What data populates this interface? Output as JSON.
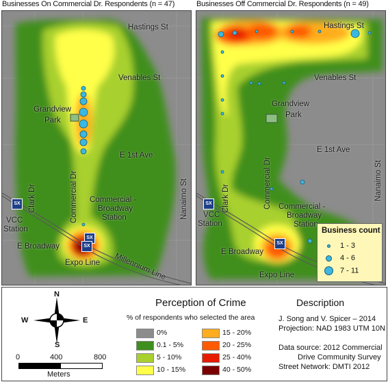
{
  "left_map": {
    "title": "Businesses On Commercial Dr. Respondents (n = 47)",
    "streets": {
      "hastings": "Hastings St",
      "venables": "Venables St",
      "grandview": "Grandview",
      "park": "Park",
      "e1st": "E 1st Ave",
      "clark": "Clark Dr",
      "commercial": "Commercial Dr",
      "nanaimo": "Nanaimo St",
      "cbroad1": "Commercial -",
      "cbroad2": "Broadway",
      "cbroad3": "Station",
      "vcc1": "VCC",
      "vcc2": "Station",
      "ebroadway": "E Broadway",
      "expo": "Expo Line",
      "millennium": "Millennium Line"
    }
  },
  "right_map": {
    "title": "Businesses Off Commercial Dr. Respondents (n = 49)",
    "streets": {
      "hastings": "Hastings St",
      "venables": "Venables St",
      "grandview": "Grandview",
      "park": "Park",
      "e1st": "E 1st Ave",
      "clark": "Clark Dr",
      "commercial": "Commercial Dr",
      "nanaimo": "Nanaimo St",
      "cbroad1": "Commercial -",
      "cbroad2": "Broadway",
      "cbroad3": "Station",
      "vcc1": "VCC",
      "vcc2": "Station",
      "ebroadway": "E Broadway",
      "expo": "Expo Line"
    },
    "business_count": {
      "title": "Business count",
      "items": [
        "1 - 3",
        "4 - 6",
        "7 - 11"
      ]
    }
  },
  "skytrain_icon_text": "SX",
  "legend": {
    "north": "N",
    "south": "S",
    "east": "E",
    "west": "W",
    "scale_ticks": [
      "0",
      "400",
      "800"
    ],
    "scale_unit": "Meters",
    "title": "Perception of Crime",
    "subtitle": "% of respondents who selected the area",
    "classes": [
      {
        "label": "0%",
        "color": "#8c8c8c"
      },
      {
        "label": "0.1 - 5%",
        "color": "#3f8f1e"
      },
      {
        "label": "5 - 10%",
        "color": "#a8d02e"
      },
      {
        "label": "10 - 15%",
        "color": "#ffff4a"
      },
      {
        "label": "15 - 20%",
        "color": "#ffad1f"
      },
      {
        "label": "20 - 25%",
        "color": "#ff5a00"
      },
      {
        "label": "25 - 40%",
        "color": "#e61b00"
      },
      {
        "label": "40 - 50%",
        "color": "#7a0000"
      }
    ],
    "description": {
      "heading": "Description",
      "line1": "J. Song and V. Spicer – 2014",
      "line2": "Projection: NAD 1983 UTM 10N",
      "line3": "Data source: 2012 Commercial",
      "line4": "Drive Community Survey",
      "line5": "Street Network: DMTI 2012"
    }
  }
}
